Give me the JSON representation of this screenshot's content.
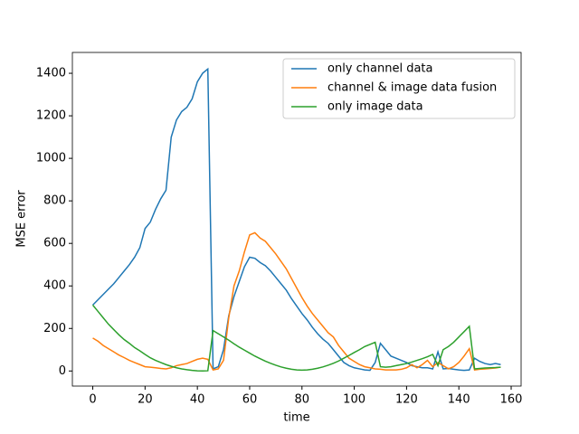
{
  "chart_data": {
    "type": "line",
    "xlabel": "time",
    "ylabel": "MSE error",
    "x": [
      0,
      2,
      4,
      6,
      8,
      10,
      12,
      14,
      16,
      18,
      20,
      22,
      24,
      26,
      28,
      30,
      32,
      34,
      36,
      38,
      40,
      42,
      44,
      46,
      48,
      50,
      52,
      54,
      56,
      58,
      60,
      62,
      64,
      66,
      68,
      70,
      72,
      74,
      76,
      78,
      80,
      82,
      84,
      86,
      88,
      90,
      92,
      94,
      96,
      98,
      100,
      102,
      104,
      106,
      108,
      110,
      112,
      114,
      116,
      118,
      120,
      122,
      124,
      126,
      128,
      130,
      132,
      134,
      136,
      138,
      140,
      142,
      144,
      146,
      148,
      150,
      152,
      154,
      156
    ],
    "series": [
      {
        "name": "only channel data",
        "color": "#1f77b4",
        "values": [
          310,
          335,
          360,
          385,
          410,
          440,
          470,
          500,
          535,
          580,
          670,
          700,
          760,
          810,
          850,
          1100,
          1180,
          1220,
          1240,
          1280,
          1360,
          1400,
          1420,
          10,
          20,
          100,
          260,
          350,
          420,
          490,
          535,
          530,
          510,
          495,
          470,
          440,
          410,
          380,
          340,
          305,
          270,
          240,
          205,
          175,
          150,
          130,
          100,
          70,
          40,
          25,
          15,
          10,
          5,
          3,
          40,
          130,
          100,
          70,
          60,
          50,
          40,
          25,
          20,
          15,
          15,
          10,
          90,
          10,
          12,
          8,
          5,
          3,
          5,
          60,
          45,
          35,
          30,
          35,
          30
        ]
      },
      {
        "name": "channel & image data fusion",
        "color": "#ff7f0e",
        "values": [
          155,
          140,
          120,
          105,
          90,
          75,
          63,
          50,
          40,
          30,
          20,
          18,
          15,
          12,
          10,
          15,
          25,
          30,
          35,
          45,
          55,
          60,
          55,
          5,
          10,
          50,
          250,
          400,
          470,
          560,
          640,
          650,
          625,
          610,
          580,
          550,
          515,
          480,
          435,
          390,
          345,
          305,
          270,
          240,
          210,
          180,
          160,
          120,
          90,
          60,
          45,
          30,
          20,
          15,
          10,
          8,
          5,
          5,
          5,
          8,
          15,
          30,
          15,
          30,
          50,
          20,
          40,
          25,
          10,
          20,
          40,
          70,
          105,
          5,
          8,
          10,
          12,
          14,
          18
        ]
      },
      {
        "name": "only image data",
        "color": "#2ca02c",
        "values": [
          310,
          280,
          250,
          220,
          195,
          170,
          148,
          130,
          110,
          95,
          78,
          62,
          50,
          40,
          30,
          22,
          15,
          10,
          6,
          3,
          1,
          0,
          1,
          190,
          175,
          160,
          145,
          128,
          112,
          98,
          84,
          70,
          58,
          46,
          36,
          27,
          19,
          13,
          8,
          5,
          4,
          5,
          8,
          13,
          19,
          27,
          36,
          47,
          60,
          73,
          87,
          100,
          115,
          125,
          135,
          20,
          18,
          20,
          25,
          30,
          35,
          42,
          50,
          58,
          67,
          78,
          25,
          100,
          115,
          135,
          160,
          185,
          210,
          10,
          12,
          14,
          15,
          16,
          18
        ]
      }
    ],
    "xlim": [
      -7.8,
      163.8
    ],
    "ylim": [
      -71,
      1498
    ],
    "xticks": [
      0,
      20,
      40,
      60,
      80,
      100,
      120,
      140,
      160
    ],
    "yticks": [
      0,
      200,
      400,
      600,
      800,
      1000,
      1200,
      1400
    ],
    "legend": "upper right"
  }
}
